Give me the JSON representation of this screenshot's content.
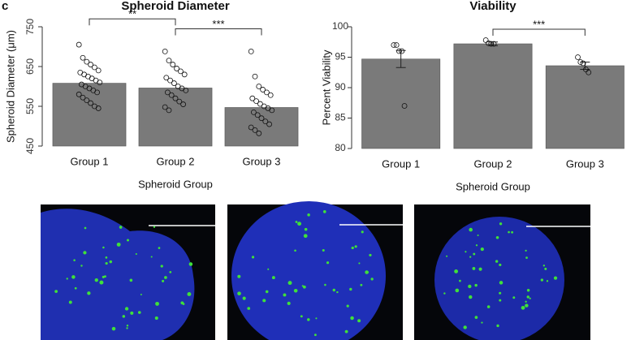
{
  "chart_data": [
    {
      "type": "bar",
      "panel_label": "c",
      "title": "Spheroid Diameter",
      "y_label": "Spheroid Diameter (μm)",
      "x_label": "Spheroid Group",
      "categories": [
        "Group 1",
        "Group 2",
        "Group 3"
      ],
      "values": [
        608,
        596,
        547
      ],
      "color": "#7a7a7a",
      "points": [
        [
          705,
          672,
          662,
          655,
          648,
          640,
          635,
          630,
          625,
          620,
          615,
          610,
          605,
          600,
          595,
          590,
          585,
          580,
          572,
          565,
          558,
          550,
          545
        ],
        [
          688,
          665,
          655,
          645,
          638,
          630,
          622,
          615,
          608,
          600,
          595,
          590,
          585,
          578,
          570,
          562,
          555,
          548,
          540
        ],
        [
          688,
          625,
          600,
          592,
          585,
          578,
          570,
          563,
          556,
          550,
          545,
          540,
          535,
          528,
          520,
          512,
          505,
          497,
          490,
          482
        ]
      ],
      "significance": [
        {
          "label": "**",
          "groups": [
            0,
            1
          ],
          "y": 770
        },
        {
          "label": "***",
          "groups": [
            1,
            2
          ],
          "y": 745
        }
      ],
      "ylim": [
        450,
        750
      ],
      "yticks": [
        450,
        550,
        650,
        750
      ]
    },
    {
      "type": "bar",
      "title": "Viability",
      "y_label": "Percent Viability",
      "x_label": "Spheroid Group",
      "categories": [
        "Group 1",
        "Group 2",
        "Group 3"
      ],
      "values": [
        94.7,
        97.2,
        93.6
      ],
      "errors": [
        1.4,
        0.3,
        0.6
      ],
      "color": "#7a7a7a",
      "points": [
        [
          97,
          97,
          96,
          96,
          87
        ],
        [
          97.8,
          97.3,
          97.2,
          97.2
        ],
        [
          95,
          94.2,
          94,
          93,
          92.5
        ]
      ],
      "significance": [
        {
          "label": "***",
          "groups": [
            1,
            2
          ],
          "y": 99.6
        }
      ],
      "ylim": [
        80,
        100
      ],
      "yticks": [
        80,
        85,
        90,
        95,
        100
      ]
    }
  ]
}
